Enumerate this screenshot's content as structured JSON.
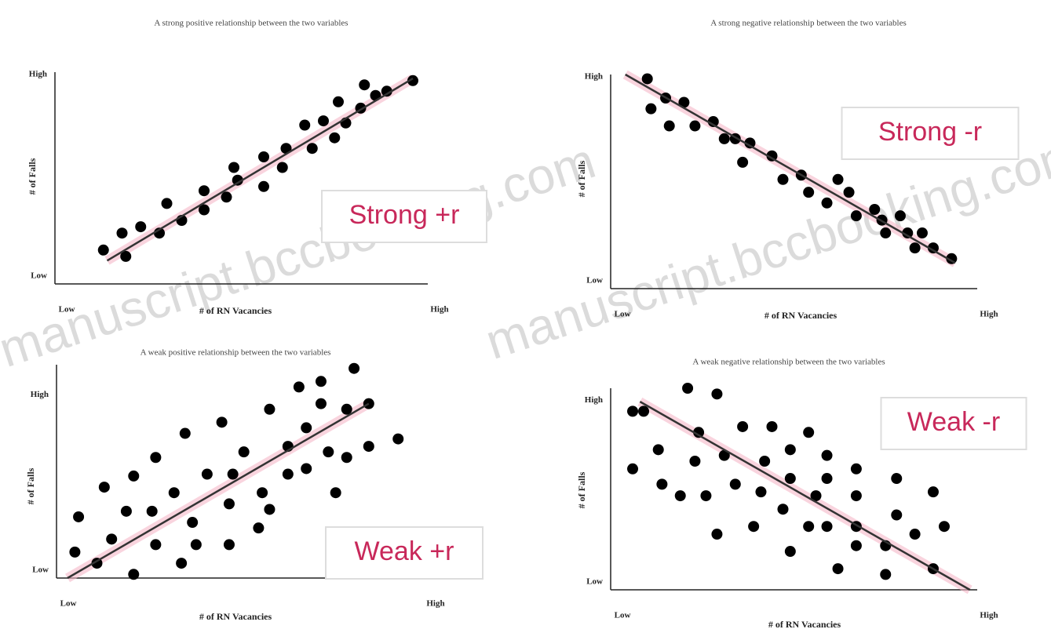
{
  "chart_data": [
    {
      "type": "scatter",
      "title": "A strong positive relationship between the two variables",
      "x_label": "# of RN Vacancies",
      "y_label": "# of Falls",
      "badge": "Strong +r",
      "color": "#000000",
      "x": [
        1.3,
        1.8,
        1.9,
        2.3,
        2.8,
        3.0,
        3.4,
        4.0,
        4.0,
        4.6,
        4.8,
        4.9,
        5.6,
        5.6,
        6.1,
        6.2,
        6.7,
        6.9,
        7.2,
        7.5,
        7.6,
        7.8,
        8.2,
        8.3,
        8.6,
        8.9,
        9.6
      ],
      "y": [
        1.6,
        2.4,
        1.3,
        2.7,
        2.4,
        3.8,
        3.0,
        4.4,
        3.5,
        4.1,
        5.5,
        4.9,
        6.0,
        4.6,
        5.5,
        6.4,
        7.5,
        6.4,
        7.7,
        6.9,
        8.6,
        7.6,
        8.3,
        9.4,
        8.9,
        9.1,
        9.6
      ],
      "trend": {
        "x": [
          1.4,
          9.6
        ],
        "y": [
          1.1,
          9.7
        ]
      },
      "xlim": [
        0,
        10
      ],
      "ylim": [
        0,
        10
      ],
      "xticks": [
        {
          "value": 0,
          "label": "Low"
        },
        {
          "value": 10,
          "label": "High"
        }
      ],
      "yticks": [
        {
          "value": 0,
          "label": "Low"
        },
        {
          "value": 10,
          "label": "High"
        }
      ]
    },
    {
      "type": "scatter",
      "title": "A strong negative relationship between the two variables",
      "x_label": "# of RN Vacancies",
      "y_label": "# of Falls",
      "badge": "Strong -r",
      "color": "#000000",
      "x": [
        1.0,
        1.1,
        1.5,
        1.6,
        2.0,
        2.3,
        2.8,
        3.1,
        3.4,
        3.6,
        3.8,
        4.4,
        4.7,
        5.2,
        5.4,
        5.9,
        6.2,
        6.5,
        6.7,
        7.2,
        7.4,
        7.5,
        7.9,
        8.1,
        8.3,
        8.5,
        8.8,
        9.3
      ],
      "y": [
        9.8,
        8.4,
        8.9,
        7.6,
        8.7,
        7.6,
        7.8,
        7.0,
        7.0,
        5.9,
        6.8,
        6.2,
        5.1,
        5.3,
        4.5,
        4.0,
        5.1,
        4.5,
        3.4,
        3.7,
        3.2,
        2.6,
        3.4,
        2.6,
        1.9,
        2.6,
        1.9,
        1.4
      ],
      "trend": {
        "x": [
          0.4,
          9.4
        ],
        "y": [
          10,
          1.2
        ]
      },
      "xlim": [
        0,
        10
      ],
      "ylim": [
        0,
        10
      ],
      "xticks": [
        {
          "value": 0,
          "label": "Low"
        },
        {
          "value": 10,
          "label": "High"
        }
      ],
      "yticks": [
        {
          "value": 0,
          "label": "Low"
        },
        {
          "value": 10,
          "label": "High"
        }
      ]
    },
    {
      "type": "scatter",
      "title": "A weak positive relationship between the two variables",
      "x_label": "# of RN Vacancies",
      "y_label": "# of Falls",
      "badge": "Weak +r",
      "color": "#000000",
      "x": [
        0.6,
        0.5,
        1.1,
        1.5,
        1.3,
        1.9,
        2.1,
        2.1,
        2.6,
        2.7,
        2.7,
        3.2,
        3.4,
        3.5,
        3.7,
        3.8,
        4.1,
        4.5,
        4.7,
        4.7,
        4.8,
        5.1,
        5.5,
        5.6,
        5.8,
        5.8,
        6.3,
        6.3,
        6.6,
        6.8,
        6.8,
        7.2,
        7.2,
        7.4,
        7.6,
        7.9,
        7.9,
        8.1,
        8.5,
        8.5,
        9.3
      ],
      "y": [
        3.3,
        1.4,
        0.8,
        2.1,
        4.9,
        3.6,
        0.2,
        5.5,
        3.6,
        6.5,
        1.8,
        4.6,
        0.8,
        7.8,
        3.0,
        1.8,
        5.6,
        8.4,
        4.0,
        1.8,
        5.6,
        6.8,
        2.7,
        4.6,
        9.1,
        3.7,
        5.6,
        7.1,
        10.3,
        5.9,
        8.1,
        10.6,
        9.4,
        6.8,
        4.6,
        9.1,
        6.5,
        11.3,
        7.1,
        9.4,
        7.5
      ],
      "trend": {
        "x": [
          0.3,
          8.5
        ],
        "y": [
          0,
          9.4
        ]
      },
      "xlim": [
        0,
        10
      ],
      "ylim": [
        0,
        11.5
      ],
      "xticks": [
        {
          "value": 0,
          "label": "Low"
        },
        {
          "value": 10,
          "label": "High"
        }
      ],
      "yticks": [
        {
          "value": 0,
          "label": "Low"
        },
        {
          "value": 10,
          "label": "High"
        }
      ]
    },
    {
      "type": "scatter",
      "title": "A weak negative relationship between the two variables",
      "x_label": "# of RN Vacancies",
      "y_label": "# of Falls",
      "badge": "Weak -r",
      "color": "#000000",
      "x": [
        0.6,
        0.6,
        0.9,
        1.3,
        1.4,
        1.9,
        2.1,
        2.3,
        2.4,
        2.6,
        2.9,
        2.9,
        3.1,
        3.4,
        3.6,
        3.9,
        4.1,
        4.2,
        4.4,
        4.7,
        4.9,
        4.9,
        4.9,
        5.4,
        5.4,
        5.6,
        5.9,
        5.9,
        5.9,
        6.2,
        6.7,
        6.7,
        6.7,
        6.7,
        7.5,
        7.5,
        7.8,
        7.8,
        8.3,
        8.8,
        8.8,
        9.1
      ],
      "y": [
        9.3,
        6.3,
        9.3,
        7.3,
        5.5,
        4.9,
        10.5,
        6.7,
        8.2,
        4.9,
        2.9,
        10.2,
        7.0,
        5.5,
        8.5,
        3.3,
        5.1,
        6.7,
        8.5,
        4.2,
        7.3,
        5.8,
        2.0,
        8.2,
        3.3,
        4.9,
        7.0,
        5.8,
        3.3,
        1.1,
        6.3,
        4.9,
        2.3,
        3.3,
        2.3,
        0.8,
        5.8,
        3.9,
        2.9,
        5.1,
        1.1,
        3.3
      ],
      "trend": {
        "x": [
          0.8,
          9.8
        ],
        "y": [
          9.8,
          0
        ]
      },
      "xlim": [
        0,
        10
      ],
      "ylim": [
        0,
        10.5
      ],
      "xticks": [
        {
          "value": 0,
          "label": "Low"
        },
        {
          "value": 10,
          "label": "High"
        }
      ],
      "yticks": [
        {
          "value": 0,
          "label": "Low"
        },
        {
          "value": 10,
          "label": "High"
        }
      ]
    }
  ],
  "watermark": "manuscript.bccbooking.com"
}
